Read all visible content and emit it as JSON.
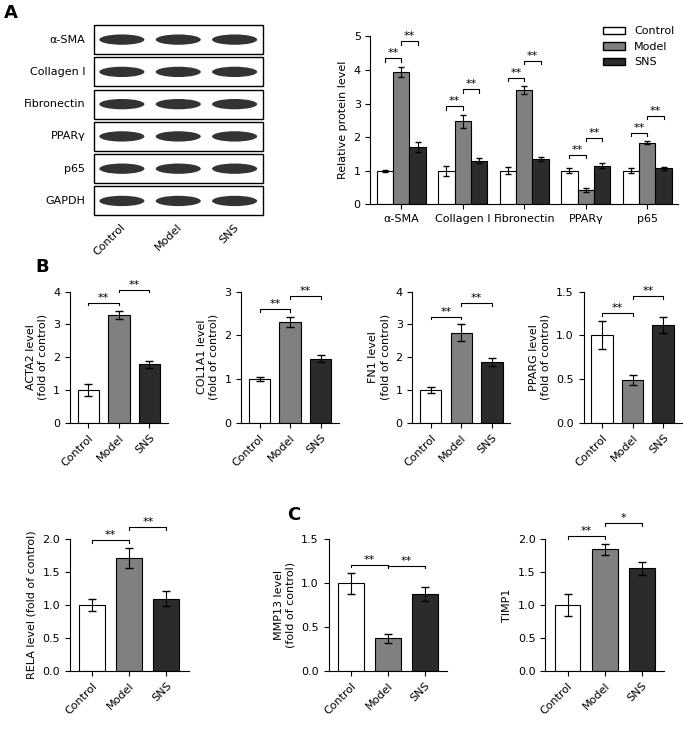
{
  "chart_data": [
    {
      "type": "blot",
      "panel_label": "A",
      "rows": [
        "α-SMA",
        "Collagen I",
        "Fibronectin",
        "PPARγ",
        "p65",
        "GAPDH"
      ],
      "categories": [
        "Control",
        "Model",
        "SNS"
      ]
    },
    {
      "type": "grouped_bar",
      "categories": [
        "α-SMA",
        "Collagen I",
        "Fibronectin",
        "PPARγ",
        "p65"
      ],
      "y_label": "Relative protein level",
      "ylim": [
        0,
        5
      ],
      "yticks": [
        0,
        1,
        2,
        3,
        4,
        5
      ],
      "legend": "upper right",
      "series": [
        {
          "name": "Control",
          "color": "#ffffff",
          "values": [
            1.0,
            1.0,
            1.0,
            1.0,
            1.0
          ],
          "errors": [
            0.03,
            0.15,
            0.1,
            0.07,
            0.08
          ]
        },
        {
          "name": "Model",
          "color": "#808080",
          "values": [
            3.95,
            2.47,
            3.4,
            0.42,
            1.83
          ],
          "errors": [
            0.15,
            0.2,
            0.12,
            0.07,
            0.05
          ]
        },
        {
          "name": "SNS",
          "color": "#2b2b2b",
          "values": [
            1.7,
            1.3,
            1.35,
            1.15,
            1.07
          ],
          "errors": [
            0.15,
            0.08,
            0.07,
            0.07,
            0.04
          ]
        }
      ],
      "significance": [
        {
          "category": "α-SMA",
          "pair": [
            "Control",
            "Model"
          ],
          "text": "**"
        },
        {
          "category": "α-SMA",
          "pair": [
            "Model",
            "SNS"
          ],
          "text": "**"
        },
        {
          "category": "Collagen I",
          "pair": [
            "Control",
            "Model"
          ],
          "text": "**"
        },
        {
          "category": "Collagen I",
          "pair": [
            "Model",
            "SNS"
          ],
          "text": "**"
        },
        {
          "category": "Fibronectin",
          "pair": [
            "Control",
            "Model"
          ],
          "text": "**"
        },
        {
          "category": "Fibronectin",
          "pair": [
            "Model",
            "SNS"
          ],
          "text": "**"
        },
        {
          "category": "PPARγ",
          "pair": [
            "Control",
            "Model"
          ],
          "text": "**"
        },
        {
          "category": "PPARγ",
          "pair": [
            "Model",
            "SNS"
          ],
          "text": "**"
        },
        {
          "category": "p65",
          "pair": [
            "Control",
            "Model"
          ],
          "text": "**"
        },
        {
          "category": "p65",
          "pair": [
            "Model",
            "SNS"
          ],
          "text": "**"
        }
      ]
    },
    {
      "type": "bar",
      "panel_label": "B",
      "categories": [
        "Control",
        "Model",
        "SNS"
      ],
      "colors": [
        "#ffffff",
        "#808080",
        "#2b2b2b"
      ],
      "y_label": "ACTA2 level\n(fold of control)",
      "ylim": [
        0,
        4
      ],
      "yticks": [
        0,
        1,
        2,
        3,
        4
      ],
      "values": [
        1.0,
        3.3,
        1.78
      ],
      "errors": [
        0.18,
        0.12,
        0.1
      ],
      "significance": [
        {
          "pair": [
            "Control",
            "Model"
          ],
          "text": "**"
        },
        {
          "pair": [
            "Model",
            "SNS"
          ],
          "text": "**"
        }
      ]
    },
    {
      "type": "bar",
      "categories": [
        "Control",
        "Model",
        "SNS"
      ],
      "colors": [
        "#ffffff",
        "#808080",
        "#2b2b2b"
      ],
      "y_label": "COL1A1 level\n(fold of control)",
      "ylim": [
        0,
        3
      ],
      "yticks": [
        0,
        1,
        2,
        3
      ],
      "values": [
        1.0,
        2.3,
        1.47
      ],
      "errors": [
        0.04,
        0.12,
        0.08
      ],
      "significance": [
        {
          "pair": [
            "Control",
            "Model"
          ],
          "text": "**"
        },
        {
          "pair": [
            "Model",
            "SNS"
          ],
          "text": "**"
        }
      ]
    },
    {
      "type": "bar",
      "categories": [
        "Control",
        "Model",
        "SNS"
      ],
      "colors": [
        "#ffffff",
        "#808080",
        "#2b2b2b"
      ],
      "y_label": "FN1 level\n(fold of control)",
      "ylim": [
        0,
        4
      ],
      "yticks": [
        0,
        1,
        2,
        3,
        4
      ],
      "values": [
        1.0,
        2.75,
        1.85
      ],
      "errors": [
        0.1,
        0.25,
        0.12
      ],
      "significance": [
        {
          "pair": [
            "Control",
            "Model"
          ],
          "text": "**"
        },
        {
          "pair": [
            "Model",
            "SNS"
          ],
          "text": "**"
        }
      ]
    },
    {
      "type": "bar",
      "categories": [
        "Control",
        "Model",
        "SNS"
      ],
      "colors": [
        "#ffffff",
        "#808080",
        "#2b2b2b"
      ],
      "y_label": "PPARG level\n(fold of control)",
      "ylim": [
        0,
        1.5
      ],
      "yticks": [
        {
          "value": 0,
          "label": "0.0"
        },
        0.5,
        {
          "value": 1,
          "label": "1.0"
        },
        1.5
      ],
      "values": [
        1.0,
        0.49,
        1.12
      ],
      "errors": [
        0.16,
        0.06,
        0.09
      ],
      "significance": [
        {
          "pair": [
            "Control",
            "Model"
          ],
          "text": "**"
        },
        {
          "pair": [
            "Model",
            "SNS"
          ],
          "text": "**"
        }
      ]
    },
    {
      "type": "bar",
      "categories": [
        "Control",
        "Model",
        "SNS"
      ],
      "colors": [
        "#ffffff",
        "#808080",
        "#2b2b2b"
      ],
      "y_label": "RELA level (fold of control)",
      "ylim": [
        0,
        2
      ],
      "yticks": [
        {
          "value": 0,
          "label": "0.0"
        },
        0.5,
        {
          "value": 1,
          "label": "1.0"
        },
        1.5,
        {
          "value": 2,
          "label": "2.0"
        }
      ],
      "values": [
        1.0,
        1.72,
        1.1
      ],
      "errors": [
        0.09,
        0.15,
        0.12
      ],
      "significance": [
        {
          "pair": [
            "Control",
            "Model"
          ],
          "text": "**"
        },
        {
          "pair": [
            "Model",
            "SNS"
          ],
          "text": "**"
        }
      ]
    },
    {
      "type": "bar",
      "panel_label": "C",
      "categories": [
        "Control",
        "Model",
        "SNS"
      ],
      "colors": [
        "#ffffff",
        "#808080",
        "#2b2b2b"
      ],
      "y_label": "MMP13 level\n(fold of control)",
      "ylim": [
        0,
        1.5
      ],
      "yticks": [
        {
          "value": 0,
          "label": "0.0"
        },
        0.5,
        {
          "value": 1,
          "label": "1.0"
        },
        1.5
      ],
      "values": [
        1.0,
        0.37,
        0.88
      ],
      "errors": [
        0.12,
        0.05,
        0.08
      ],
      "significance": [
        {
          "pair": [
            "Control",
            "Model"
          ],
          "text": "**"
        },
        {
          "pair": [
            "Model",
            "SNS"
          ],
          "text": "**"
        }
      ]
    },
    {
      "type": "bar",
      "categories": [
        "Control",
        "Model",
        "SNS"
      ],
      "colors": [
        "#ffffff",
        "#808080",
        "#2b2b2b"
      ],
      "y_label": "TIMP1",
      "ylim": [
        0,
        2
      ],
      "yticks": [
        {
          "value": 0,
          "label": "0.0"
        },
        0.5,
        {
          "value": 1,
          "label": "1.0"
        },
        1.5,
        {
          "value": 2,
          "label": "2.0"
        }
      ],
      "values": [
        1.0,
        1.85,
        1.56
      ],
      "errors": [
        0.17,
        0.08,
        0.1
      ],
      "significance": [
        {
          "pair": [
            "Control",
            "Model"
          ],
          "text": "**"
        },
        {
          "pair": [
            "Model",
            "SNS"
          ],
          "text": "*"
        }
      ]
    }
  ]
}
